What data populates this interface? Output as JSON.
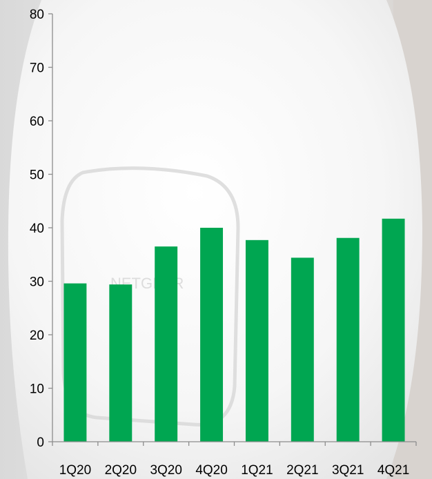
{
  "chart_data": {
    "type": "bar",
    "categories": [
      "1Q20",
      "2Q20",
      "3Q20",
      "4Q20",
      "1Q21",
      "2Q21",
      "3Q21",
      "4Q21"
    ],
    "values": [
      29.6,
      29.4,
      36.5,
      40.0,
      37.7,
      34.4,
      38.1,
      41.7
    ],
    "ylim": [
      0,
      80
    ],
    "yticks": [
      0,
      10,
      20,
      30,
      40,
      50,
      60,
      70,
      80
    ],
    "grid": false,
    "bar_color": "#00a651",
    "title": "",
    "xlabel": "",
    "ylabel": ""
  },
  "background": {
    "description_icon": "router-device-icon",
    "brand_text": "NETGEAR"
  }
}
